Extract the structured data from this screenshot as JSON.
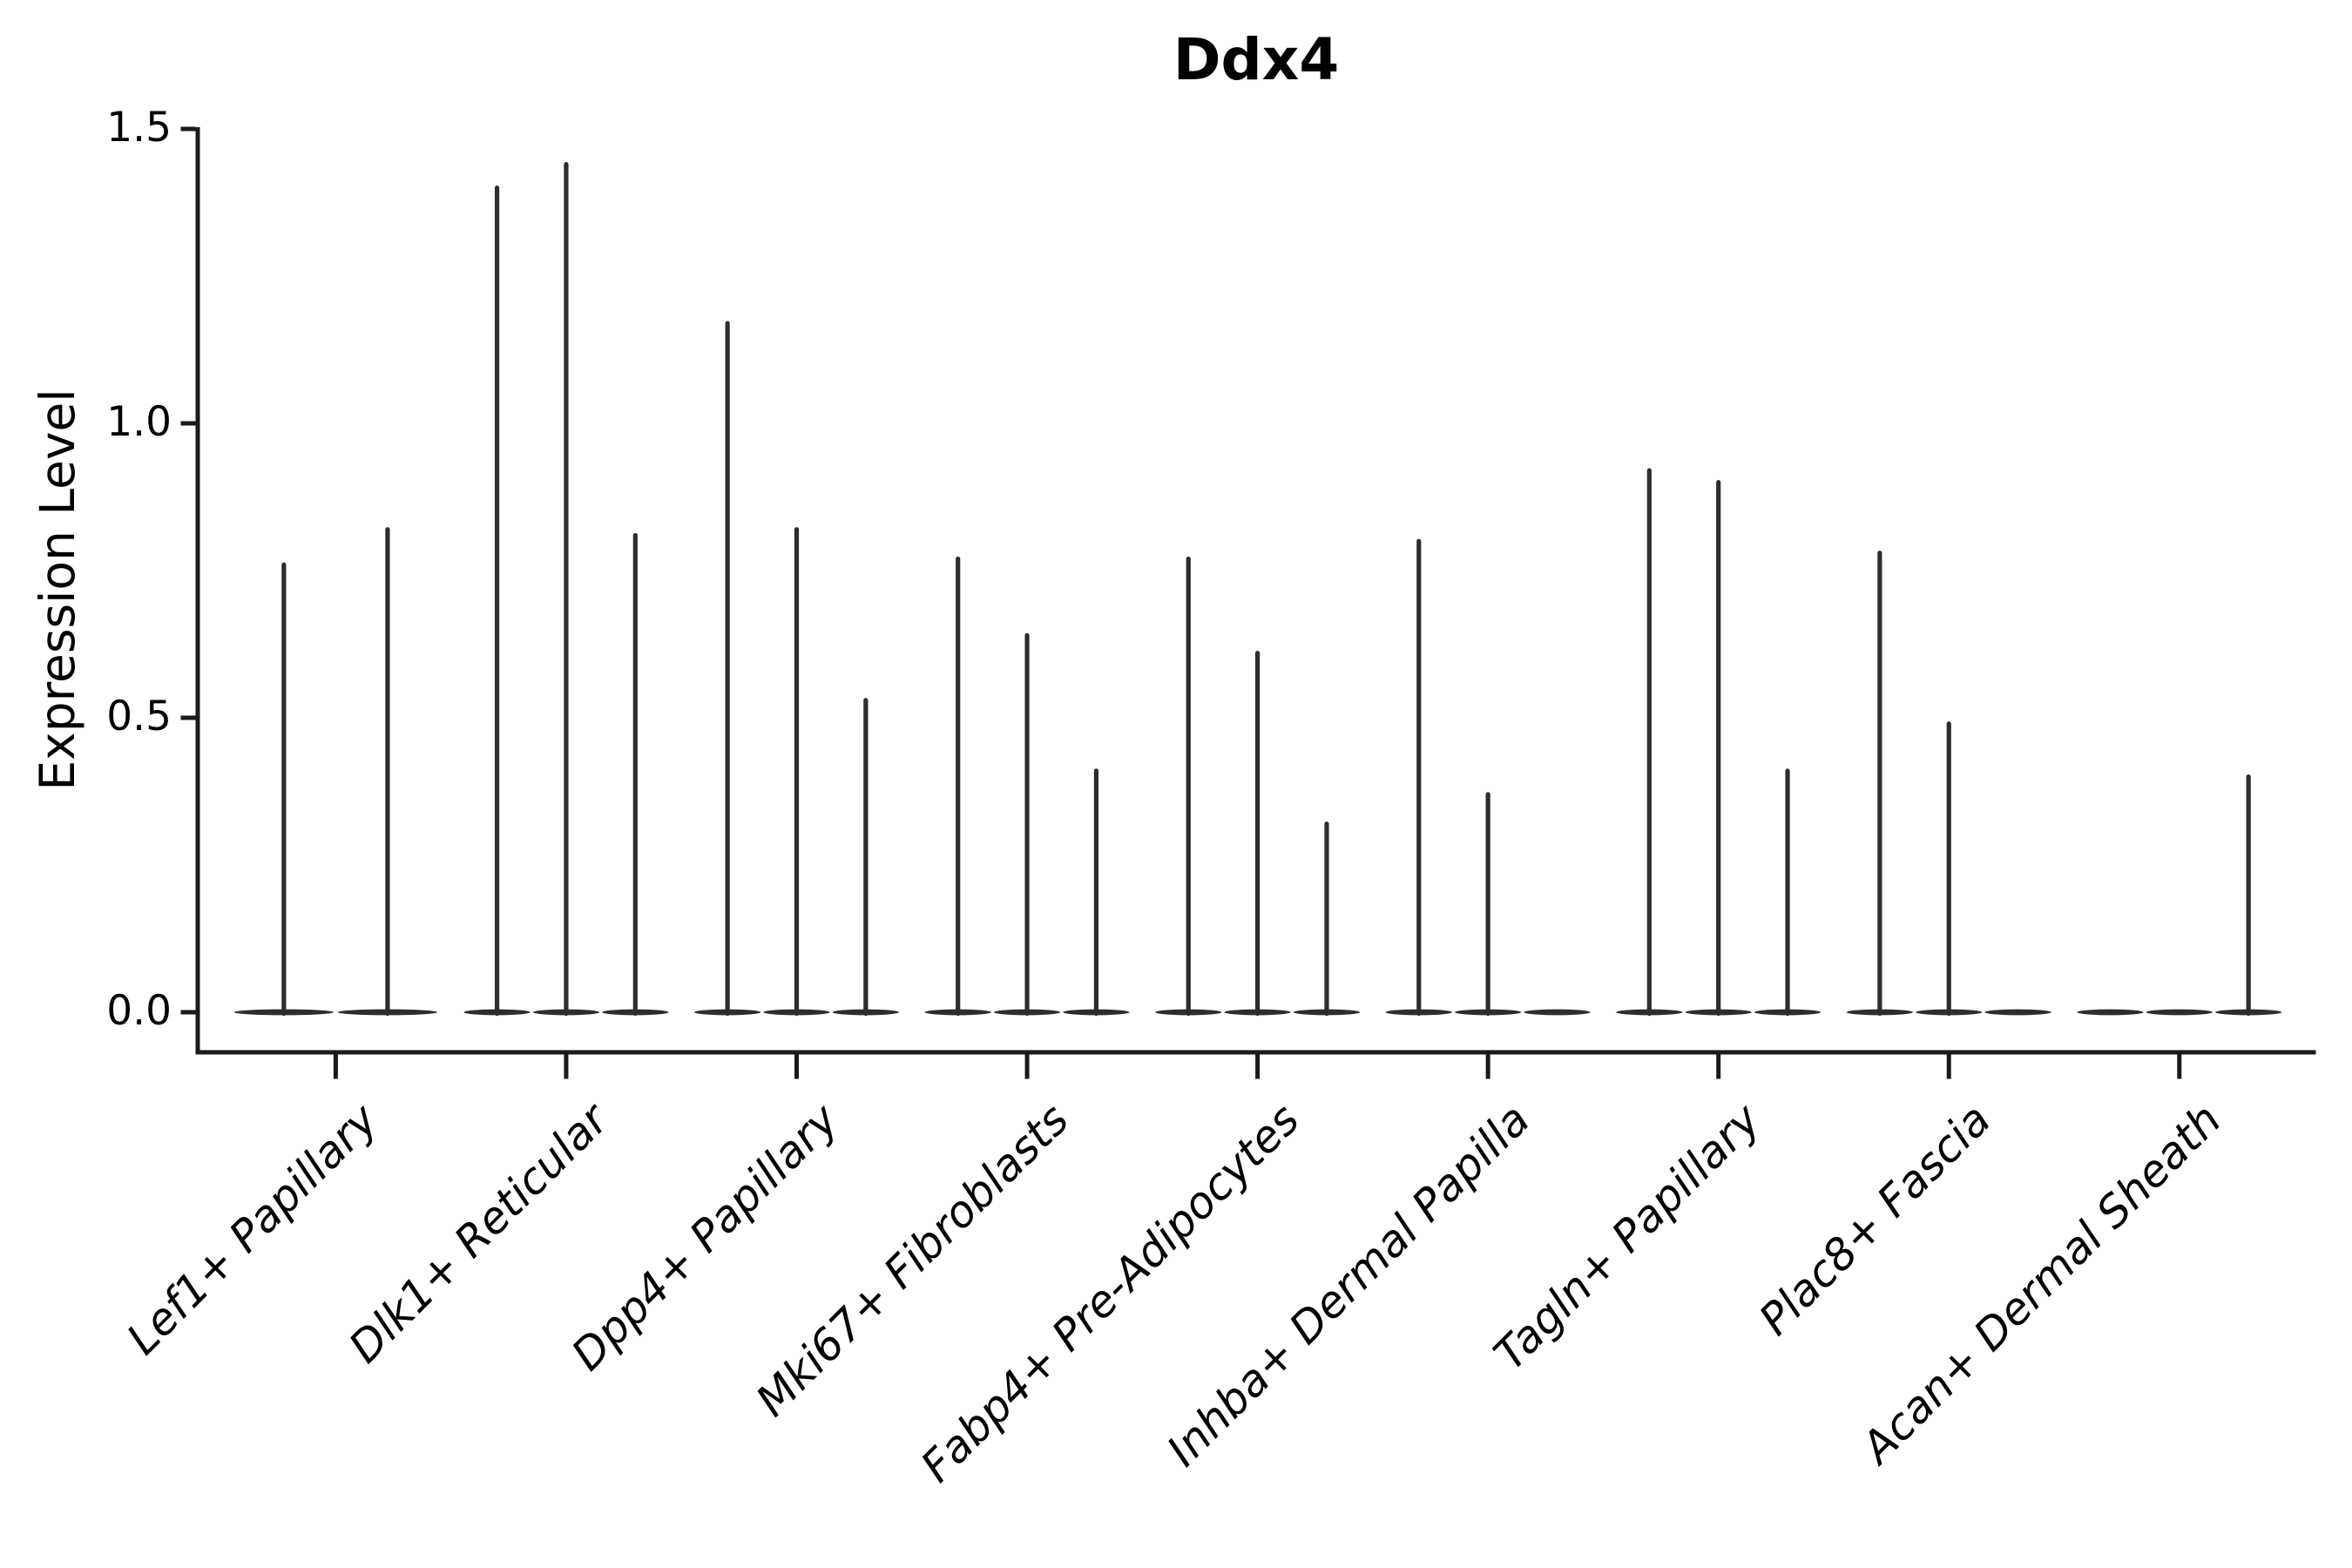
{
  "figure": {
    "title": "Ddx4",
    "background_color": "#ffffff",
    "axis_color": "#1a1a1a",
    "violin_color": "#2d2d2d",
    "text_color": "#000000"
  },
  "chart_data": {
    "type": "violin",
    "title": "Ddx4",
    "xlabel": "",
    "ylabel": "Expression Level",
    "ylim": [
      0,
      1.5
    ],
    "yticks": [
      0,
      0.5,
      1.0,
      1.5
    ],
    "ytick_labels": [
      "0.0",
      "0.5",
      "1.0",
      "1.5"
    ],
    "grid": false,
    "legend_position": "none",
    "style_note": "zero-inflated violins: wide flat base at 0 with thin spike up to max expression; 2-3 sub-violins per category, zero-max violins render as flat base only",
    "categories": [
      "Lef1+ Papillary",
      "Dlk1+ Reticular",
      "Dpp4+ Papillary",
      "Mki67+ Fibroblasts",
      "Fabp4+ Pre-Adipocytes",
      "Inhba+ Dermal Papilla",
      "Tagln+ Papillary",
      "Plac8+ Fascia",
      "Acan+ Dermal Sheath"
    ],
    "series": [
      {
        "category": "Lef1+ Papillary",
        "violin_max": [
          0.76,
          0.82
        ]
      },
      {
        "category": "Dlk1+ Reticular",
        "violin_max": [
          1.4,
          1.44,
          0.81
        ]
      },
      {
        "category": "Dpp4+ Papillary",
        "violin_max": [
          1.17,
          0.82,
          0.53
        ]
      },
      {
        "category": "Mki67+ Fibroblasts",
        "violin_max": [
          0.77,
          0.64,
          0.41
        ]
      },
      {
        "category": "Fabp4+ Pre-Adipocytes",
        "violin_max": [
          0.77,
          0.61,
          0.32
        ]
      },
      {
        "category": "Inhba+ Dermal Papilla",
        "violin_max": [
          0.8,
          0.37,
          0
        ]
      },
      {
        "category": "Tagln+ Papillary",
        "violin_max": [
          0.92,
          0.9,
          0.41
        ]
      },
      {
        "category": "Plac8+ Fascia",
        "violin_max": [
          0.78,
          0.49,
          0
        ]
      },
      {
        "category": "Acan+ Dermal Sheath",
        "violin_max": [
          0,
          0,
          0.4
        ]
      }
    ]
  }
}
